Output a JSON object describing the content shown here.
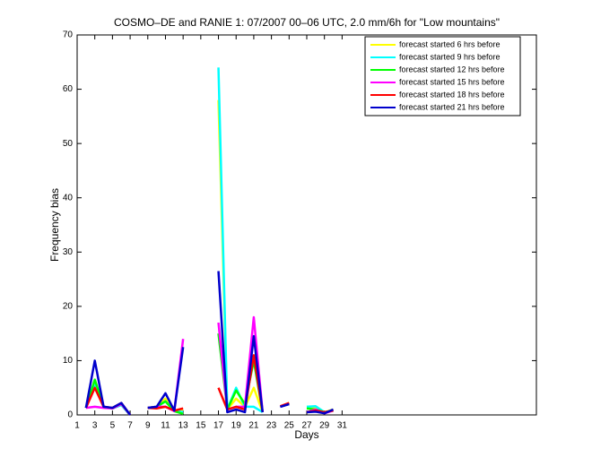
{
  "chart_data": {
    "type": "line",
    "title": "COSMO–DE and RANIE 1: 07/2007 00–06 UTC, 2.0 mm/6h for \"Low mountains\"",
    "xlabel": "Days",
    "ylabel": "Frequency bias",
    "x": [
      1,
      2,
      3,
      4,
      5,
      6,
      7,
      8,
      9,
      10,
      11,
      12,
      13,
      14,
      15,
      16,
      17,
      18,
      19,
      20,
      21,
      22,
      23,
      24,
      25,
      26,
      27,
      28,
      29,
      30,
      31
    ],
    "xlim": [
      1,
      53
    ],
    "ylim": [
      0,
      70
    ],
    "xticks": [
      1,
      3,
      5,
      7,
      9,
      11,
      13,
      15,
      17,
      19,
      21,
      23,
      25,
      27,
      29,
      31
    ],
    "yticks": [
      0,
      10,
      20,
      30,
      40,
      50,
      60,
      70
    ],
    "legend_position": "upper right",
    "series": [
      {
        "name": "forecast started 6 hrs before",
        "color": "#ffff00",
        "values": [
          null,
          1.3,
          6,
          1.5,
          1.2,
          2,
          0,
          null,
          1.3,
          1.5,
          3,
          0.8,
          1,
          null,
          null,
          null,
          58,
          1,
          3,
          1.5,
          5,
          0.5,
          null,
          1.5,
          2.2,
          null,
          1.5,
          1.3,
          0.5,
          1,
          null
        ]
      },
      {
        "name": "forecast started 9 hrs before",
        "color": "#00ffff",
        "values": [
          null,
          1.3,
          5.5,
          1.5,
          1.2,
          1.8,
          0,
          null,
          1.3,
          1.5,
          2.5,
          0.8,
          0.5,
          null,
          null,
          null,
          64,
          1,
          5,
          1.5,
          1.5,
          0.5,
          null,
          1.5,
          2,
          null,
          1.5,
          1.6,
          0.5,
          0.8,
          null
        ]
      },
      {
        "name": "forecast started 12 hrs before",
        "color": "#00ff00",
        "values": [
          null,
          1.3,
          6.5,
          1.5,
          1.2,
          2,
          0,
          null,
          1.3,
          1.5,
          2.5,
          0.7,
          0.2,
          null,
          null,
          null,
          15,
          1,
          4.5,
          2,
          10,
          0.5,
          null,
          1.5,
          2,
          null,
          1.2,
          1,
          0.5,
          0.8,
          null
        ]
      },
      {
        "name": "forecast started 15 hrs before",
        "color": "#ff00ff",
        "values": [
          null,
          1.3,
          1.5,
          1.3,
          1.2,
          2,
          0,
          null,
          1.3,
          1.5,
          1.5,
          0.7,
          14,
          null,
          null,
          null,
          17,
          1,
          1.5,
          1.5,
          18,
          0.5,
          null,
          1.5,
          2,
          null,
          0.5,
          1,
          0.3,
          0.8,
          null
        ]
      },
      {
        "name": "forecast started 18 hrs before",
        "color": "#ff0000",
        "values": [
          null,
          1.3,
          5,
          1.5,
          1.3,
          2.2,
          0,
          null,
          1.3,
          1.2,
          1.5,
          0.8,
          1.2,
          null,
          null,
          null,
          5,
          1,
          1.5,
          1,
          11,
          0.5,
          null,
          1.6,
          2.2,
          null,
          0.5,
          0.8,
          0.5,
          0.8,
          null
        ]
      },
      {
        "name": "forecast started 21 hrs before",
        "color": "#0000cc",
        "values": [
          null,
          1.3,
          10,
          1.5,
          1.3,
          2.2,
          0,
          null,
          1.3,
          1.5,
          4,
          0.8,
          12.5,
          null,
          null,
          null,
          26.5,
          0.5,
          1,
          0.5,
          14.5,
          0.5,
          null,
          1.5,
          2,
          null,
          0.5,
          0.6,
          0.3,
          1,
          null
        ]
      }
    ]
  }
}
